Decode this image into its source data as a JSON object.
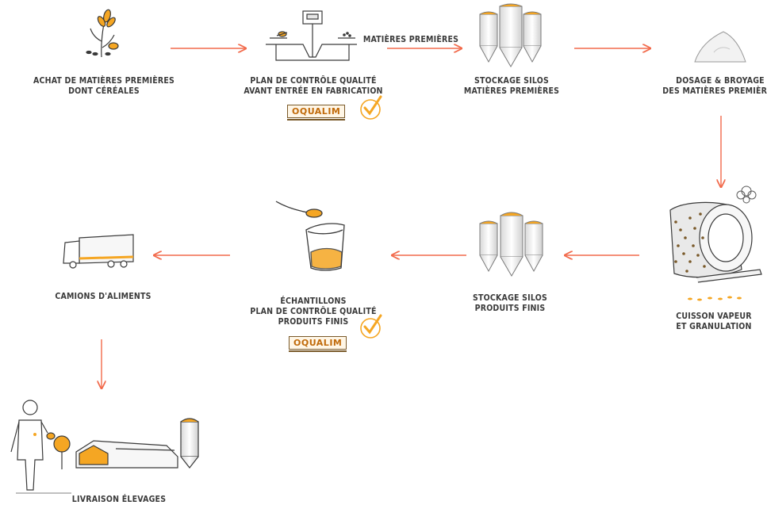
{
  "steps": [
    {
      "id": "achat",
      "lines": [
        "ACHAT DE MATIÈRES PREMIÈRES",
        "DONT CÉRÉALES"
      ]
    },
    {
      "id": "plan-controle-entree",
      "lines": [
        "PLAN DE CONTRÔLE QUALITÉ",
        "AVANT ENTRÉE EN FABRICATION"
      ]
    },
    {
      "id": "stockage-mp",
      "lines": [
        "STOCKAGE SILOS",
        "MATIÈRES PREMIÈRES"
      ]
    },
    {
      "id": "dosage",
      "lines": [
        "DOSAGE & BROYAGE",
        "DES MATIÈRES PREMIÈRES"
      ]
    },
    {
      "id": "cuisson",
      "lines": [
        "CUISSON VAPEUR",
        "ET GRANULATION"
      ]
    },
    {
      "id": "stockage-pf",
      "lines": [
        "STOCKAGE SILOS",
        "PRODUITS FINIS"
      ]
    },
    {
      "id": "echantillons",
      "lines": [
        "ÉCHANTILLONS",
        "PLAN DE CONTRÔLE QUALITÉ",
        "PRODUITS FINIS"
      ]
    },
    {
      "id": "camions",
      "lines": [
        "CAMIONS D'ALIMENTS"
      ]
    },
    {
      "id": "livraison",
      "lines": [
        "LIVRAISON ÉLEVAGES"
      ]
    }
  ],
  "arrow_label": "MATIÈRES PREMIÈRES",
  "badges": {
    "oqualim_1": "OQUALIM",
    "oqualim_2": "OQUALIM"
  },
  "colors": {
    "accent": "#f26a4b",
    "orange": "#f5a623",
    "ink": "#3a3a3a",
    "grey": "#9a9a9a"
  }
}
